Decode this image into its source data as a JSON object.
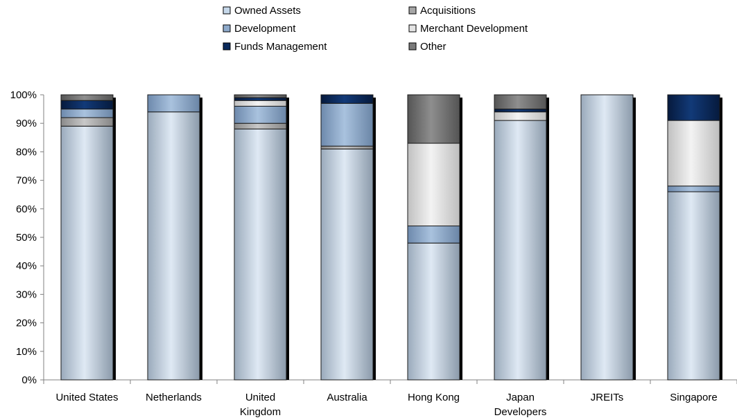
{
  "chart_data": {
    "type": "bar",
    "stacked": true,
    "title": "",
    "xlabel": "",
    "ylabel": "",
    "ylim": [
      0,
      100
    ],
    "y_tick_format": "percent",
    "y_ticks": [
      "0%",
      "10%",
      "20%",
      "30%",
      "40%",
      "50%",
      "60%",
      "70%",
      "80%",
      "90%",
      "100%"
    ],
    "categories": [
      "United States",
      "Netherlands",
      "United\nKingdom",
      "Australia",
      "Hong Kong",
      "Japan\nDevelopers",
      "JREITs",
      "Singapore"
    ],
    "legend_position": "top",
    "grid": false,
    "series": [
      {
        "name": "Owned Assets",
        "color": "#c6d8ea",
        "values": [
          89,
          94,
          88,
          81,
          48,
          91,
          100,
          66
        ]
      },
      {
        "name": "Acquisitions",
        "color": "#a6a6a6",
        "values": [
          3,
          0,
          2,
          1,
          0,
          0,
          0,
          0
        ]
      },
      {
        "name": "Development",
        "color": "#8eaacb",
        "values": [
          3,
          6,
          6,
          15,
          6,
          0,
          0,
          2
        ]
      },
      {
        "name": "Merchant Development",
        "color": "#e4e4e4",
        "values": [
          0,
          0,
          2,
          0,
          29,
          3,
          0,
          23
        ]
      },
      {
        "name": "Funds Management",
        "color": "#0a2a5c",
        "values": [
          3,
          0,
          1,
          3,
          0,
          1,
          0,
          9
        ]
      },
      {
        "name": "Other",
        "color": "#7a7a7a",
        "values": [
          2,
          0,
          1,
          0,
          17,
          5,
          0,
          0
        ]
      }
    ]
  }
}
